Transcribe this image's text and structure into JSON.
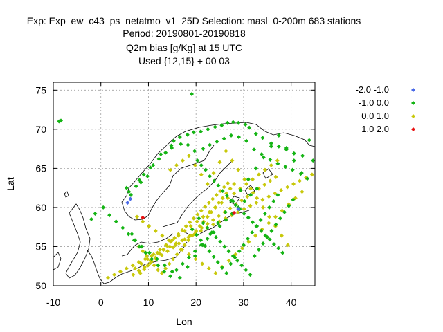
{
  "chart_data": {
    "type": "scatter",
    "title_lines": [
      "Exp: Exp_ew_c43_ps_netatmo_v1_25D   Selection: masl_0-200m    683 stations",
      "Period: 20190801-20190818",
      "Q2m bias [g/Kg] at  15 UTC",
      "Used {12,15} + 00 03"
    ],
    "xlabel": "Lon",
    "ylabel": "Lat",
    "xlim": [
      -10,
      45
    ],
    "ylim": [
      50,
      76
    ],
    "xticks": [
      "-10",
      "0",
      "10",
      "20",
      "30",
      "40"
    ],
    "yticks": [
      "50",
      "55",
      "60",
      "65",
      "70",
      "75"
    ],
    "grid": true,
    "legend_position": "right",
    "series": [
      {
        "name": "-2.0 -1.0",
        "color": "#4a6ae8",
        "marker": "diamond",
        "x": [
          6.2,
          5.6,
          28.9
        ],
        "y": [
          61.1,
          60.6,
          59.8
        ]
      },
      {
        "name": "-1.0 0.0",
        "color": "#14b414",
        "marker": "diamond",
        "x": [
          -8.8,
          -8.4,
          19.1,
          8.4,
          9.8,
          11.0,
          12.6,
          14.8,
          15.3,
          16.6,
          18.2,
          19.5,
          21.0,
          22.5,
          24.0,
          25.4,
          26.6,
          27.8,
          28.9,
          30.4,
          31.2,
          32.6,
          34.0,
          35.8,
          37.4,
          39.0,
          40.6,
          42.4,
          43.8,
          44.6,
          5.4,
          5.9,
          6.3,
          7.4,
          8.1,
          9.0,
          10.4,
          12.2,
          13.6,
          14.9,
          16.8,
          18.3,
          19.7,
          21.5,
          22.9,
          24.4,
          25.9,
          27.4,
          29.0,
          30.6,
          32.2,
          33.8,
          35.6,
          37.2,
          38.8,
          40.3,
          42.0,
          43.4,
          20.3,
          21.1,
          22.0,
          22.9,
          23.8,
          24.7,
          25.6,
          26.5,
          27.4,
          28.3,
          29.2,
          30.1,
          31.0,
          31.9,
          32.8,
          33.7,
          34.6,
          35.5,
          36.4,
          37.3,
          38.2,
          20.6,
          21.5,
          22.4,
          23.3,
          24.2,
          25.1,
          26.0,
          26.9,
          27.8,
          28.7,
          29.6,
          30.5,
          31.4,
          32.3,
          33.2,
          34.1,
          35.0,
          35.9,
          36.8,
          37.7,
          38.6,
          39.5,
          40.4,
          19.2,
          20.1,
          21.0,
          21.9,
          22.8,
          23.7,
          24.6,
          25.5,
          26.4,
          27.3,
          28.2,
          29.1,
          30.0,
          30.9,
          31.8,
          32.7,
          33.6,
          34.5,
          35.4,
          36.3,
          37.2,
          6.5,
          7.2,
          8.1,
          9.4,
          10.7,
          12.0,
          13.3,
          14.6,
          15.9,
          17.2,
          18.5,
          19.8,
          21.1,
          22.4,
          23.7,
          25.0,
          26.3,
          27.6,
          28.9,
          30.2,
          31.5,
          32.8,
          -2.0,
          -1.2,
          0.5,
          1.8,
          3.2,
          4.6,
          5.8,
          7.0,
          8.6,
          10.2,
          11.8,
          13.4,
          15.0,
          16.6,
          18.2,
          19.8,
          21.4,
          23.0,
          24.6,
          26.2,
          27.8,
          29.4,
          31.0,
          32.6,
          34.2,
          35.8,
          37.4,
          39.0,
          40.6,
          42.2
        ],
        "y": [
          71.0,
          71.1,
          74.5,
          63.2,
          64.0,
          65.4,
          66.8,
          67.9,
          68.5,
          69.0,
          69.3,
          69.6,
          69.7,
          70.0,
          70.3,
          70.5,
          70.8,
          70.9,
          70.8,
          70.6,
          70.2,
          69.4,
          68.9,
          68.2,
          67.8,
          67.4,
          66.9,
          66.6,
          68.6,
          66.0,
          62.5,
          62.0,
          61.6,
          62.7,
          63.5,
          64.2,
          65.1,
          66.2,
          67.0,
          67.6,
          68.1,
          68.0,
          67.2,
          67.5,
          68.0,
          68.4,
          68.8,
          69.2,
          69.0,
          68.5,
          67.4,
          66.8,
          66.1,
          65.6,
          65.2,
          64.8,
          64.3,
          63.7,
          66.0,
          65.4,
          64.8,
          64.0,
          63.4,
          62.8,
          62.1,
          61.5,
          60.9,
          60.3,
          59.8,
          59.2,
          58.7,
          58.1,
          57.6,
          57.0,
          56.4,
          55.9,
          55.3,
          54.8,
          54.2,
          58.6,
          58.0,
          57.4,
          56.8,
          56.2,
          55.6,
          55.0,
          54.4,
          53.8,
          53.2,
          52.6,
          52.0,
          51.4,
          53.8,
          54.6,
          55.4,
          56.2,
          57.0,
          57.8,
          58.6,
          59.4,
          60.2,
          61.0,
          57.2,
          56.5,
          55.8,
          55.1,
          54.4,
          53.7,
          53.0,
          52.3,
          51.6,
          52.8,
          53.6,
          54.4,
          55.2,
          56.0,
          56.8,
          57.6,
          58.4,
          59.2,
          60.0,
          60.8,
          61.6,
          56.6,
          55.8,
          55.0,
          54.2,
          53.4,
          52.6,
          51.8,
          51.2,
          52.0,
          52.8,
          53.6,
          54.4,
          55.2,
          56.0,
          56.8,
          57.6,
          58.4,
          59.2,
          60.0,
          60.8,
          61.6,
          62.4,
          58.5,
          59.2,
          60.0,
          59.0,
          58.2,
          57.4,
          56.6,
          55.8,
          55.0,
          54.2,
          53.4,
          52.6,
          51.8,
          51.0,
          52.4,
          53.8,
          55.2,
          56.6,
          58.0,
          59.4,
          60.8,
          62.2,
          63.6,
          65.0,
          66.4,
          67.8,
          69.2,
          67.6,
          66.0,
          64.4
        ]
      },
      {
        "name": "0.0 1.0",
        "color": "#c8c80a",
        "marker": "diamond",
        "x": [
          7.6,
          8.8,
          10.1,
          11.5,
          12.9,
          14.3,
          15.7,
          17.1,
          18.5,
          19.9,
          21.3,
          22.7,
          24.1,
          25.5,
          26.9,
          28.3,
          29.7,
          31.1,
          32.5,
          33.9,
          35.3,
          36.7,
          38.1,
          39.5,
          40.9,
          42.3,
          7.2,
          8.5,
          9.8,
          11.1,
          12.4,
          13.7,
          15.0,
          16.3,
          17.6,
          18.9,
          20.2,
          21.5,
          22.8,
          24.1,
          25.4,
          26.7,
          28.0,
          29.3,
          30.6,
          31.9,
          33.2,
          34.5,
          35.8,
          37.1,
          6.8,
          8.0,
          9.2,
          10.4,
          11.6,
          12.8,
          14.0,
          15.2,
          16.4,
          17.6,
          18.8,
          20.0,
          21.2,
          22.4,
          23.6,
          24.8,
          26.0,
          27.2,
          28.4,
          29.6,
          30.8,
          32.0,
          33.2,
          34.4,
          35.6,
          36.8,
          8.3,
          9.1,
          9.9,
          10.7,
          11.5,
          12.3,
          13.1,
          13.9,
          14.7,
          15.5,
          16.3,
          17.1,
          17.9,
          18.7,
          19.5,
          20.3,
          21.1,
          21.9,
          22.7,
          23.5,
          24.3,
          25.1,
          25.9,
          26.7,
          8.0,
          8.8,
          9.6,
          10.4,
          11.2,
          12.0,
          12.8,
          13.6,
          14.4,
          15.2,
          16.0,
          16.8,
          17.6,
          18.4,
          19.2,
          20.0,
          20.8,
          21.6,
          22.4,
          23.2,
          24.0,
          24.8,
          25.6,
          26.4,
          27.2,
          28.0,
          1.5,
          2.8,
          4.1,
          5.4,
          6.7,
          8.0,
          9.3,
          10.6,
          11.9,
          13.2,
          14.5,
          15.8,
          17.1,
          18.4,
          19.7,
          21.0,
          22.3,
          23.6,
          24.9,
          26.2,
          27.5,
          28.8,
          30.1,
          31.4,
          32.7,
          34.0,
          35.3,
          36.6,
          37.9,
          39.2,
          40.5,
          41.8,
          43.1,
          44.4,
          14.6,
          15.9,
          17.2,
          18.5,
          19.8,
          21.1,
          22.4,
          23.7,
          25.0,
          26.3,
          27.6,
          28.9,
          30.2,
          31.5,
          32.8,
          34.1,
          35.4,
          36.7,
          38.0,
          39.3
        ],
        "y": [
          58.8,
          58.2,
          57.6,
          57.0,
          56.4,
          55.8,
          55.2,
          54.6,
          54.0,
          53.4,
          52.8,
          52.2,
          51.6,
          52.4,
          53.2,
          54.0,
          54.8,
          55.6,
          56.4,
          57.2,
          58.0,
          58.8,
          59.6,
          60.4,
          61.2,
          62.0,
          52.2,
          52.8,
          53.4,
          54.0,
          54.6,
          55.2,
          55.8,
          56.4,
          57.0,
          57.6,
          58.2,
          58.8,
          59.4,
          60.0,
          60.6,
          61.2,
          61.8,
          62.4,
          63.0,
          63.6,
          64.2,
          64.8,
          65.4,
          66.0,
          51.4,
          51.9,
          52.4,
          52.9,
          53.4,
          53.9,
          54.4,
          54.9,
          55.4,
          55.9,
          56.4,
          56.9,
          57.4,
          57.9,
          58.4,
          58.9,
          59.4,
          59.9,
          60.4,
          60.9,
          61.4,
          61.9,
          62.4,
          62.9,
          63.4,
          63.9,
          51.6,
          52.1,
          52.6,
          53.1,
          53.6,
          54.1,
          54.6,
          55.1,
          55.6,
          56.1,
          56.6,
          57.1,
          57.6,
          58.1,
          58.6,
          59.1,
          59.6,
          60.1,
          60.6,
          61.1,
          61.6,
          62.1,
          62.6,
          63.1,
          55.0,
          54.4,
          53.8,
          53.2,
          52.6,
          52.0,
          51.6,
          52.2,
          52.8,
          53.4,
          54.0,
          54.6,
          55.2,
          55.8,
          56.4,
          57.0,
          57.6,
          58.2,
          58.8,
          59.4,
          60.0,
          60.6,
          61.2,
          61.8,
          62.4,
          63.0,
          51.0,
          51.4,
          51.8,
          52.2,
          52.6,
          53.0,
          53.4,
          53.8,
          54.2,
          54.6,
          55.0,
          55.4,
          55.8,
          56.2,
          56.6,
          57.0,
          57.4,
          57.8,
          58.2,
          58.6,
          59.0,
          59.4,
          59.8,
          60.2,
          60.6,
          61.0,
          61.4,
          61.8,
          62.2,
          62.6,
          63.0,
          63.4,
          63.8,
          64.2,
          64.8,
          65.4,
          66.0,
          66.6,
          65.4,
          64.2,
          63.0,
          64.4,
          65.8,
          67.2,
          66.0,
          64.8,
          63.6,
          62.4,
          61.2,
          60.0,
          58.8,
          57.6,
          56.4,
          55.2
        ]
      },
      {
        "name": "1.0 2.0",
        "color": "#e81010",
        "marker": "diamond",
        "x": [
          8.8,
          28.0
        ],
        "y": [
          58.7,
          59.3
        ]
      }
    ]
  }
}
